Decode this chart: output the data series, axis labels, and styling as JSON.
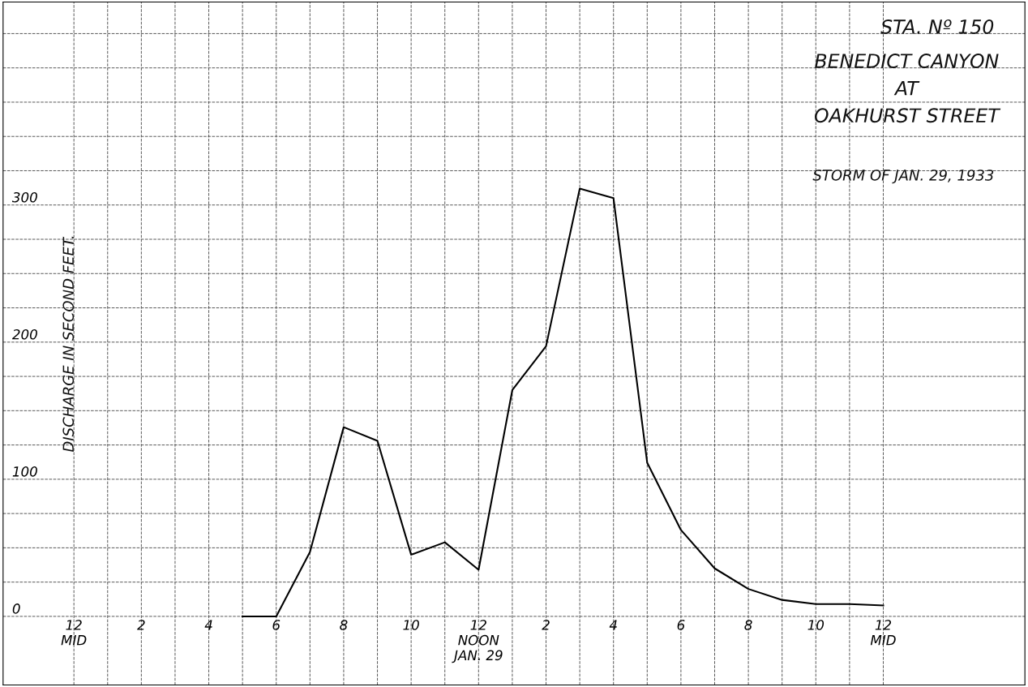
{
  "chart_data": {
    "type": "line",
    "title": "STA. Nº 150",
    "subtitle": "BENEDICT CANYON\nAT\nOAKHURST STREET",
    "annotations": [
      "STORM OF JAN. 29, 1933"
    ],
    "ylabel": "DISCHARGE IN SECOND FEET.",
    "x": [
      "1933-01-29T05:00",
      "1933-01-29T06:00",
      "1933-01-29T07:00",
      "1933-01-29T08:00",
      "1933-01-29T09:00",
      "1933-01-29T10:00",
      "1933-01-29T11:00",
      "1933-01-29T12:00",
      "1933-01-29T13:00",
      "1933-01-29T14:00",
      "1933-01-29T15:00",
      "1933-01-29T16:00",
      "1933-01-29T17:00",
      "1933-01-29T18:00",
      "1933-01-29T19:00",
      "1933-01-29T20:00",
      "1933-01-29T21:00",
      "1933-01-29T22:00",
      "1933-01-29T23:00",
      "1933-01-30T00:00"
    ],
    "series": [
      {
        "color": "#000000",
        "values": [
          0,
          0,
          47,
          138,
          128,
          45,
          54,
          34,
          165,
          197,
          312,
          305,
          112,
          63,
          35,
          20,
          12,
          9,
          9,
          8
        ]
      }
    ],
    "xlim": [
      "1933-01-28T21:54",
      "1933-01-30T04:12"
    ],
    "xticks": [
      {
        "value": "1933-01-29T00:00",
        "label": "12\nMID"
      },
      {
        "value": "1933-01-29T01:00",
        "label": null
      },
      {
        "value": "1933-01-29T02:00",
        "label": "2"
      },
      {
        "value": "1933-01-29T03:00",
        "label": null
      },
      {
        "value": "1933-01-29T04:00",
        "label": "4"
      },
      {
        "value": "1933-01-29T05:00",
        "label": null
      },
      {
        "value": "1933-01-29T06:00",
        "label": "6"
      },
      {
        "value": "1933-01-29T07:00",
        "label": null
      },
      {
        "value": "1933-01-29T08:00",
        "label": "8"
      },
      {
        "value": "1933-01-29T09:00",
        "label": null
      },
      {
        "value": "1933-01-29T10:00",
        "label": "10"
      },
      {
        "value": "1933-01-29T11:00",
        "label": null
      },
      {
        "value": "1933-01-29T12:00",
        "label": "12\nNOON\nJAN. 29"
      },
      {
        "value": "1933-01-29T13:00",
        "label": null
      },
      {
        "value": "1933-01-29T14:00",
        "label": "2"
      },
      {
        "value": "1933-01-29T15:00",
        "label": null
      },
      {
        "value": "1933-01-29T16:00",
        "label": "4"
      },
      {
        "value": "1933-01-29T17:00",
        "label": null
      },
      {
        "value": "1933-01-29T18:00",
        "label": "6"
      },
      {
        "value": "1933-01-29T19:00",
        "label": null
      },
      {
        "value": "1933-01-29T20:00",
        "label": "8"
      },
      {
        "value": "1933-01-29T21:00",
        "label": null
      },
      {
        "value": "1933-01-29T22:00",
        "label": "10"
      },
      {
        "value": "1933-01-29T23:00",
        "label": null
      },
      {
        "value": "1933-01-30T00:00",
        "label": "12\nMID"
      }
    ],
    "ylim": [
      -50,
      448
    ],
    "yticks": [
      0,
      {
        "value": 25,
        "label": null
      },
      {
        "value": 50,
        "label": null
      },
      {
        "value": 75,
        "label": null
      },
      100,
      {
        "value": 125,
        "label": null
      },
      {
        "value": 150,
        "label": null
      },
      {
        "value": 175,
        "label": null
      },
      200,
      {
        "value": 225,
        "label": null
      },
      {
        "value": 250,
        "label": null
      },
      {
        "value": 275,
        "label": null
      },
      300,
      {
        "value": 325,
        "label": null
      },
      {
        "value": 350,
        "label": null
      },
      {
        "value": 375,
        "label": null
      },
      {
        "value": 400,
        "label": null
      },
      {
        "value": 425,
        "label": null
      }
    ],
    "grid": true,
    "legend": false,
    "marker": "none",
    "line_style": "solid"
  }
}
